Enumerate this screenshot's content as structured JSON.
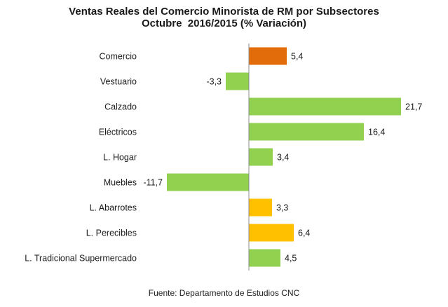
{
  "chart_data": {
    "type": "bar",
    "orientation": "horizontal",
    "title": "Ventas Reales del Comercio Minorista de RM por Subsectores",
    "subtitle": "Octubre  2016/2015 (% Variación)",
    "categories": [
      "Comercio",
      "Vestuario",
      "Calzado",
      "Eléctricos",
      "L. Hogar",
      "Muebles",
      "L. Abarrotes",
      "L. Perecibles",
      "L. Tradicional Supermercado"
    ],
    "values": [
      5.4,
      -3.3,
      21.7,
      16.4,
      3.4,
      -11.7,
      3.3,
      6.4,
      4.5
    ],
    "value_labels": [
      "5,4",
      "-3,3",
      "21,7",
      "16,4",
      "3,4",
      "-11,7",
      "3,3",
      "6,4",
      "4,5"
    ],
    "colors": [
      "#e36c0a",
      "#92d050",
      "#92d050",
      "#92d050",
      "#92d050",
      "#92d050",
      "#ffc000",
      "#ffc000",
      "#92d050"
    ],
    "xlim": [
      -11.7,
      21.7
    ],
    "grid": false,
    "legend": "none",
    "source": "Fuente: Departamento de Estudios CNC"
  }
}
